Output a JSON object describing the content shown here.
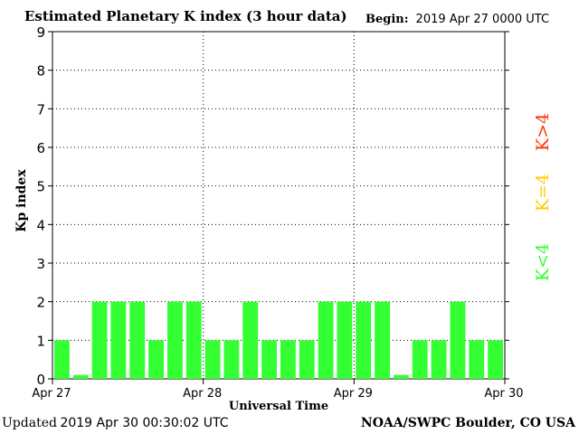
{
  "header": {
    "title": "Estimated Planetary K index (3 hour data)",
    "begin_label": "Begin:",
    "begin_value": "2019 Apr 27 0000 UTC"
  },
  "footer": {
    "updated_label": "Updated",
    "updated_value": "2019 Apr 30 00:30:02 UTC",
    "credit": "NOAA/SWPC Boulder, CO USA"
  },
  "chart_data": {
    "type": "bar",
    "ylabel": "Kp index",
    "xlabel": "Universal Time",
    "ylim": [
      0,
      9
    ],
    "yticks": [
      0,
      1,
      2,
      3,
      4,
      5,
      6,
      7,
      8,
      9
    ],
    "x_tick_labels": [
      "Apr 27",
      "Apr 28",
      "Apr 29",
      "Apr 30"
    ],
    "interval_hours": 3,
    "values": [
      1,
      0.1,
      2,
      2,
      2,
      1,
      2,
      2,
      1,
      1,
      2,
      1,
      1,
      1,
      2,
      2,
      2,
      2,
      0.1,
      1,
      1,
      2,
      1,
      1
    ],
    "bar_color": "#33ff33",
    "grid": "dotted, at day boundaries and every Kp unit",
    "legend": [
      {
        "label": "K<4",
        "color": "#33ff33"
      },
      {
        "label": "K=4",
        "color": "#ffcc00"
      },
      {
        "label": "K>4",
        "color": "#ff3300"
      }
    ],
    "legend_placement": "right, vertical"
  }
}
